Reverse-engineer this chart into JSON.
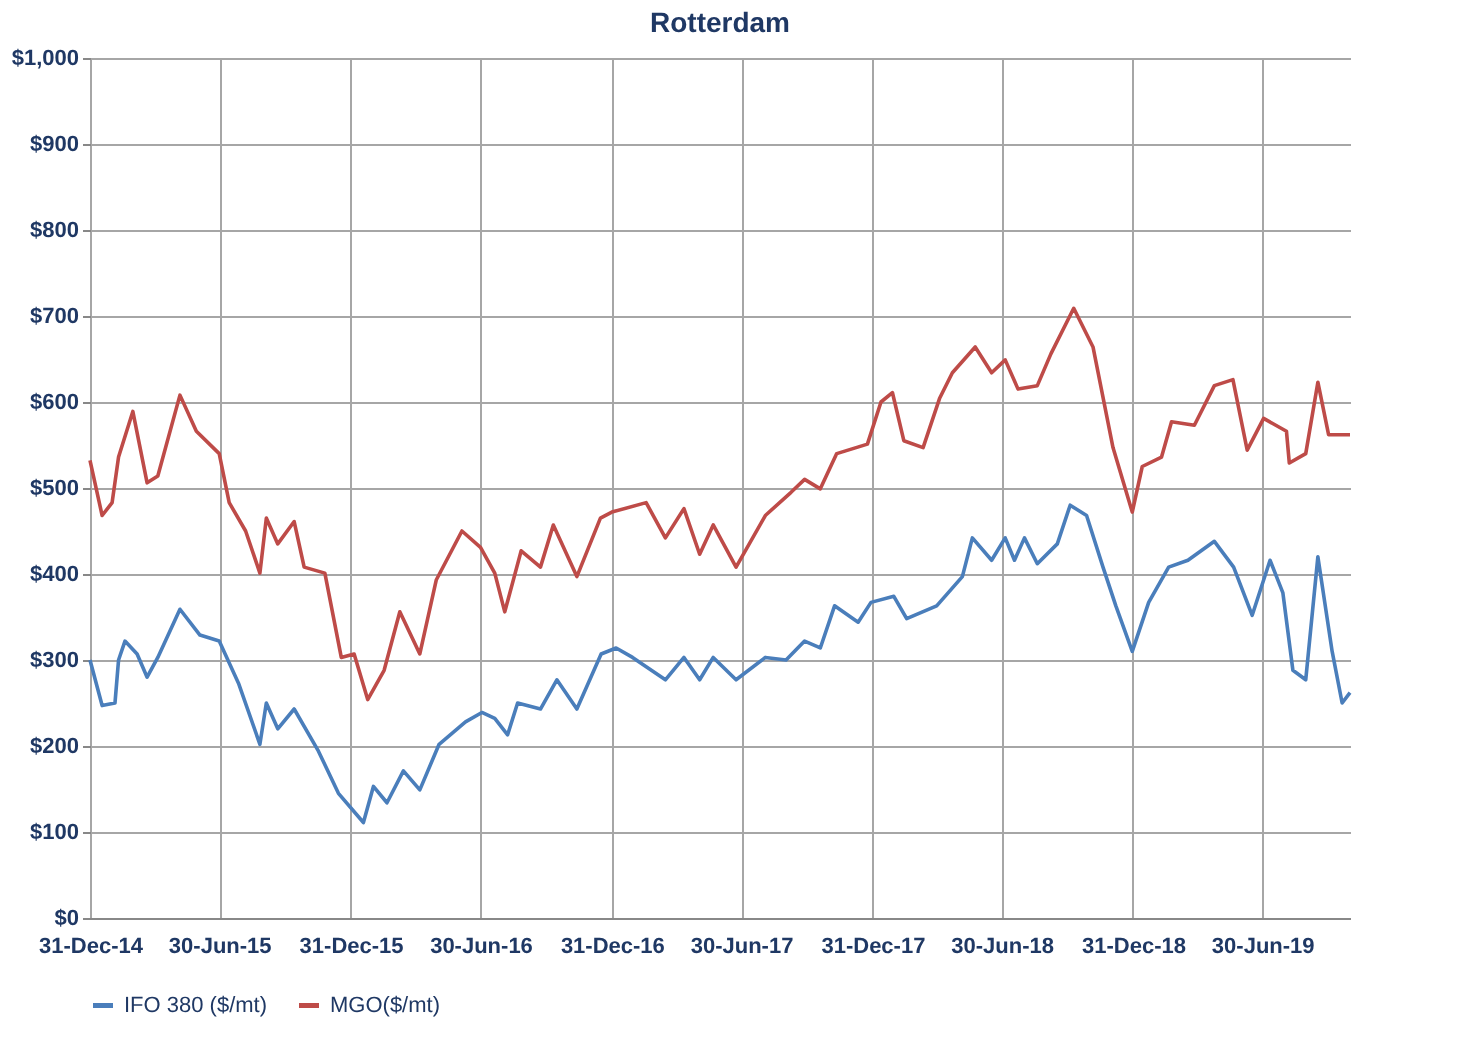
{
  "chart_data": {
    "type": "line",
    "title": "Rotterdam",
    "xlim": [
      "2014-12-31",
      "2019-10-31"
    ],
    "xticks": [
      {
        "value": "2014-12-31",
        "label": "31-Dec-14"
      },
      {
        "value": "2015-06-30",
        "label": "30-Jun-15"
      },
      {
        "value": "2015-12-31",
        "label": "31-Dec-15"
      },
      {
        "value": "2016-06-30",
        "label": "30-Jun-16"
      },
      {
        "value": "2016-12-31",
        "label": "31-Dec-16"
      },
      {
        "value": "2017-06-30",
        "label": "30-Jun-17"
      },
      {
        "value": "2017-12-31",
        "label": "31-Dec-17"
      },
      {
        "value": "2018-06-30",
        "label": "30-Jun-18"
      },
      {
        "value": "2018-12-31",
        "label": "31-Dec-18"
      },
      {
        "value": "2019-06-30",
        "label": "30-Jun-19"
      }
    ],
    "ylim": [
      0,
      1000
    ],
    "yticks": [
      {
        "value": 0,
        "label": "$0"
      },
      {
        "value": 100,
        "label": "$100"
      },
      {
        "value": 200,
        "label": "$200"
      },
      {
        "value": 300,
        "label": "$300"
      },
      {
        "value": 400,
        "label": "$400"
      },
      {
        "value": 500,
        "label": "$500"
      },
      {
        "value": 600,
        "label": "$600"
      },
      {
        "value": 700,
        "label": "$700"
      },
      {
        "value": 800,
        "label": "$800"
      },
      {
        "value": 900,
        "label": "$900"
      },
      {
        "value": 1000,
        "label": "$1,000"
      }
    ],
    "grid": true,
    "legend": "bottom",
    "series": [
      {
        "name": "IFO 380 ($/mt)",
        "color": "#4a7ebb",
        "x": [
          "2014-12-31",
          "2015-01-17",
          "2015-02-04",
          "2015-02-09",
          "2015-02-18",
          "2015-03-07",
          "2015-03-21",
          "2015-04-05",
          "2015-05-06",
          "2015-06-03",
          "2015-06-30",
          "2015-07-27",
          "2015-08-26",
          "2015-09-04",
          "2015-09-20",
          "2015-10-13",
          "2015-11-16",
          "2015-12-14",
          "2016-01-18",
          "2016-02-01",
          "2016-02-20",
          "2016-03-14",
          "2016-04-06",
          "2016-05-03",
          "2016-06-09",
          "2016-07-02",
          "2016-07-20",
          "2016-08-07",
          "2016-08-21",
          "2016-09-22",
          "2016-10-15",
          "2016-11-12",
          "2016-12-16",
          "2017-01-06",
          "2017-01-29",
          "2017-03-16",
          "2017-04-11",
          "2017-05-03",
          "2017-05-22",
          "2017-06-23",
          "2017-08-03",
          "2017-09-01",
          "2017-09-27",
          "2017-10-19",
          "2017-11-08",
          "2017-12-11",
          "2017-12-29",
          "2018-01-30",
          "2018-02-17",
          "2018-03-31",
          "2018-05-06",
          "2018-05-20",
          "2018-06-16",
          "2018-07-05",
          "2018-07-18",
          "2018-08-01",
          "2018-08-19",
          "2018-09-16",
          "2018-10-04",
          "2018-10-27",
          "2018-11-19",
          "2018-12-07",
          "2018-12-30",
          "2019-01-22",
          "2019-02-19",
          "2019-03-18",
          "2019-04-24",
          "2019-05-21",
          "2019-06-16",
          "2019-07-11",
          "2019-07-29",
          "2019-08-12",
          "2019-08-30",
          "2019-09-16",
          "2019-10-06",
          "2019-10-20",
          "2019-10-31"
        ],
        "values": [
          300,
          247,
          250,
          300,
          322,
          307,
          280,
          303,
          359,
          329,
          322,
          273,
          202,
          250,
          220,
          243,
          194,
          145,
          111,
          153,
          134,
          171,
          149,
          202,
          228,
          239,
          232,
          213,
          250,
          243,
          277,
          243,
          307,
          314,
          303,
          277,
          303,
          277,
          303,
          277,
          303,
          300,
          322,
          314,
          363,
          344,
          367,
          374,
          348,
          363,
          397,
          442,
          416,
          442,
          416,
          442,
          412,
          435,
          480,
          468,
          408,
          363,
          310,
          367,
          408,
          416,
          438,
          408,
          352,
          416,
          378,
          288,
          277,
          420,
          310,
          250,
          262
        ]
      },
      {
        "name": "MGO($/mt)",
        "color": "#be4b48",
        "x": [
          "2014-12-31",
          "2015-01-17",
          "2015-01-31",
          "2015-02-09",
          "2015-03-01",
          "2015-03-21",
          "2015-04-05",
          "2015-05-06",
          "2015-05-29",
          "2015-06-30",
          "2015-07-14",
          "2015-08-06",
          "2015-08-26",
          "2015-09-04",
          "2015-09-20",
          "2015-10-13",
          "2015-10-27",
          "2015-11-25",
          "2015-12-18",
          "2016-01-05",
          "2016-01-24",
          "2016-02-16",
          "2016-03-09",
          "2016-04-06",
          "2016-04-29",
          "2016-06-04",
          "2016-06-30",
          "2016-07-20",
          "2016-08-03",
          "2016-08-26",
          "2016-09-22",
          "2016-10-10",
          "2016-11-12",
          "2016-12-15",
          "2016-12-31",
          "2017-02-17",
          "2017-03-16",
          "2017-04-11",
          "2017-05-03",
          "2017-05-22",
          "2017-06-23",
          "2017-08-03",
          "2017-09-08",
          "2017-09-27",
          "2017-10-19",
          "2017-11-11",
          "2017-12-24",
          "2018-01-12",
          "2018-01-28",
          "2018-02-13",
          "2018-03-12",
          "2018-04-04",
          "2018-04-22",
          "2018-05-24",
          "2018-06-16",
          "2018-07-05",
          "2018-07-23",
          "2018-08-19",
          "2018-09-07",
          "2018-10-09",
          "2018-11-05",
          "2018-12-03",
          "2018-12-30",
          "2019-01-13",
          "2019-02-09",
          "2019-02-23",
          "2019-03-27",
          "2019-04-24",
          "2019-05-20",
          "2019-06-09",
          "2019-07-02",
          "2019-08-03",
          "2019-08-07",
          "2019-08-30",
          "2019-09-16",
          "2019-10-01",
          "2019-10-31"
        ],
        "values": [
          532,
          468,
          483,
          536,
          589,
          506,
          514,
          608,
          566,
          540,
          483,
          450,
          401,
          465,
          435,
          461,
          408,
          401,
          303,
          307,
          254,
          288,
          356,
          307,
          393,
          450,
          431,
          401,
          356,
          427,
          408,
          457,
          397,
          465,
          472,
          483,
          442,
          476,
          423,
          457,
          408,
          468,
          495,
          510,
          499,
          540,
          551,
          600,
          611,
          555,
          547,
          604,
          634,
          664,
          634,
          649,
          615,
          619,
          656,
          709,
          664,
          547,
          472,
          525,
          536,
          577,
          573,
          619,
          626,
          544,
          581,
          566,
          529,
          540,
          623,
          562,
          562
        ]
      }
    ]
  }
}
